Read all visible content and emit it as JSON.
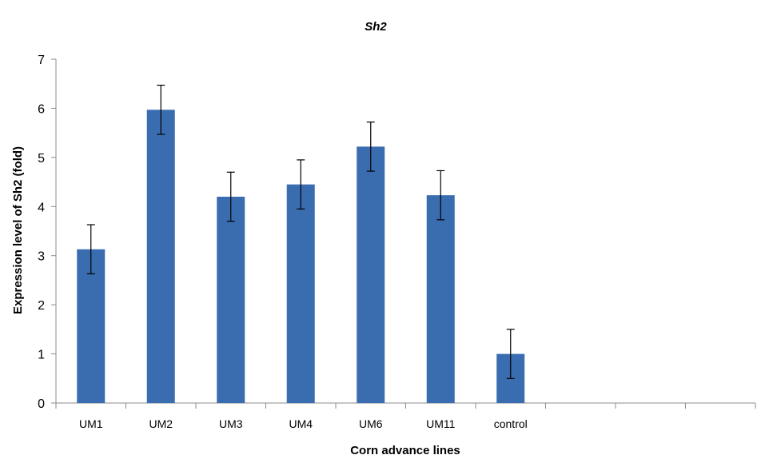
{
  "chart_data": {
    "type": "bar",
    "title": "Sh2",
    "xlabel": "Corn advance lines",
    "ylabel": "Expression level of Sh2 (fold)",
    "categories": [
      "UM1",
      "UM2",
      "UM3",
      "UM4",
      "UM6",
      "UM11",
      "control",
      "",
      "",
      ""
    ],
    "values": [
      3.13,
      5.97,
      4.2,
      4.45,
      5.22,
      4.23,
      1.0,
      null,
      null,
      null
    ],
    "error": [
      0.5,
      0.5,
      0.5,
      0.5,
      0.5,
      0.5,
      0.5,
      null,
      null,
      null
    ],
    "ylim": [
      0,
      7
    ],
    "yticks": [
      0,
      1,
      2,
      3,
      4,
      5,
      6,
      7
    ],
    "grid": false,
    "legend": "none",
    "bar_color": "#3a6db0",
    "axis_color": "#8c8c8c"
  }
}
